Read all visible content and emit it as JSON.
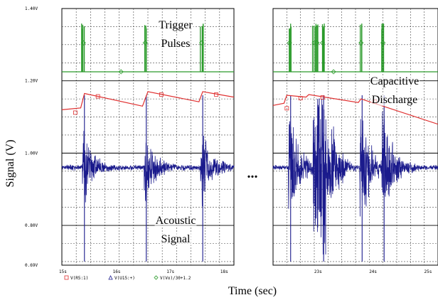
{
  "chart_data": {
    "type": "line",
    "xlabel": "Time (sec)",
    "ylabel": "Signal (V)",
    "gap_marker": "...",
    "ylim": [
      0.69,
      1.4
    ],
    "ytick_labels": [
      "1.40V",
      "1.20V",
      "1.00V",
      "0.80V",
      "0.69V"
    ],
    "yticks": [
      1.4,
      1.2,
      1.0,
      0.8,
      0.69
    ],
    "panels": [
      {
        "xlim": [
          15,
          18.2
        ],
        "xticks": [
          15,
          16,
          17,
          18
        ],
        "xtick_labels": [
          "15s",
          "16s",
          "17s",
          "18s"
        ]
      },
      {
        "xlim": [
          22.2,
          25.2
        ],
        "xticks": [
          23,
          24,
          25
        ],
        "xtick_labels": [
          "23s",
          "24s",
          "25s"
        ]
      }
    ],
    "series": [
      {
        "legend": "V(R5:1)",
        "color": "#e03030",
        "marker": "square"
      },
      {
        "legend": "V(U15:+)",
        "color": "#1a1a8c",
        "marker": "triangle"
      },
      {
        "legend": "V(Vo)/30+1.2",
        "color": "#2a9a2a",
        "marker": "diamond"
      }
    ],
    "trigger_times": [
      [
        15.4,
        16.55,
        17.6
      ],
      [
        22.5,
        22.95,
        23.0,
        23.1,
        23.8,
        24.2
      ]
    ],
    "discharge": {
      "panel1": [
        [
          15.0,
          1.12
        ],
        [
          15.35,
          1.125
        ],
        [
          15.42,
          1.165
        ],
        [
          16.5,
          1.13
        ],
        [
          16.6,
          1.17
        ],
        [
          17.55,
          1.142
        ],
        [
          17.62,
          1.17
        ],
        [
          18.2,
          1.155
        ]
      ],
      "panel2": [
        [
          22.2,
          1.132
        ],
        [
          22.4,
          1.138
        ],
        [
          22.45,
          1.16
        ],
        [
          22.8,
          1.155
        ],
        [
          22.85,
          1.162
        ],
        [
          23.75,
          1.14
        ],
        [
          23.8,
          1.15
        ],
        [
          25.2,
          1.08
        ]
      ]
    },
    "acoustic_baseline": 0.96,
    "annotations": [
      {
        "text": "Trigger",
        "panel": 1
      },
      {
        "text": "Pulses",
        "panel": 1
      },
      {
        "text": "Capacitive",
        "panel": 2
      },
      {
        "text": "Discharge",
        "panel": 2
      },
      {
        "text": "Acoustic",
        "panel": 1
      },
      {
        "text": "Signal",
        "panel": 1
      }
    ]
  }
}
